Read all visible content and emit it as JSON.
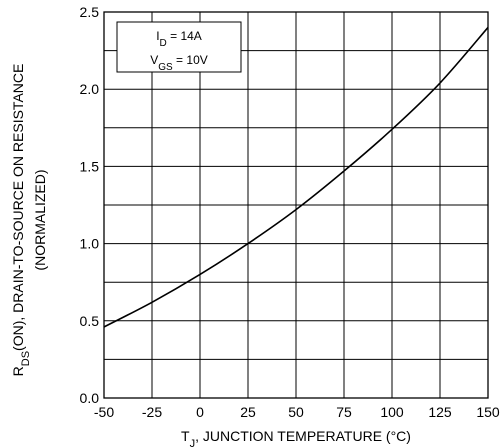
{
  "chart_data": {
    "type": "line",
    "xlabel": {
      "prefix": "T",
      "sub": "J",
      "rest": ", JUNCTION TEMPERATURE (°C)"
    },
    "ylabel": {
      "line1_prefix": "R",
      "line1_sub": "DS",
      "line1_rest": "(ON), DRAIN-TO-SOURCE ON RESISTANCE",
      "line2": "(NORMALIZED)"
    },
    "xlim": [
      -50,
      150
    ],
    "ylim": [
      0.0,
      2.5
    ],
    "x_ticks": [
      "-50",
      "-25",
      "0",
      "25",
      "50",
      "75",
      "100",
      "125",
      "150"
    ],
    "y_ticks": [
      "0.0",
      "0.5",
      "1.0",
      "1.5",
      "2.0",
      "2.5"
    ],
    "grid": true,
    "legend": {
      "placement": "top-left",
      "line1": {
        "main": "I",
        "sub": "D",
        "rest": " = 14A"
      },
      "line2": {
        "main": "V",
        "sub": "GS",
        "rest": " = 10V"
      }
    },
    "series": [
      {
        "x": [
          -50,
          -25,
          0,
          25,
          50,
          75,
          100,
          125,
          150
        ],
        "y": [
          0.46,
          0.62,
          0.8,
          1.0,
          1.22,
          1.47,
          1.74,
          2.04,
          2.4
        ]
      }
    ]
  }
}
